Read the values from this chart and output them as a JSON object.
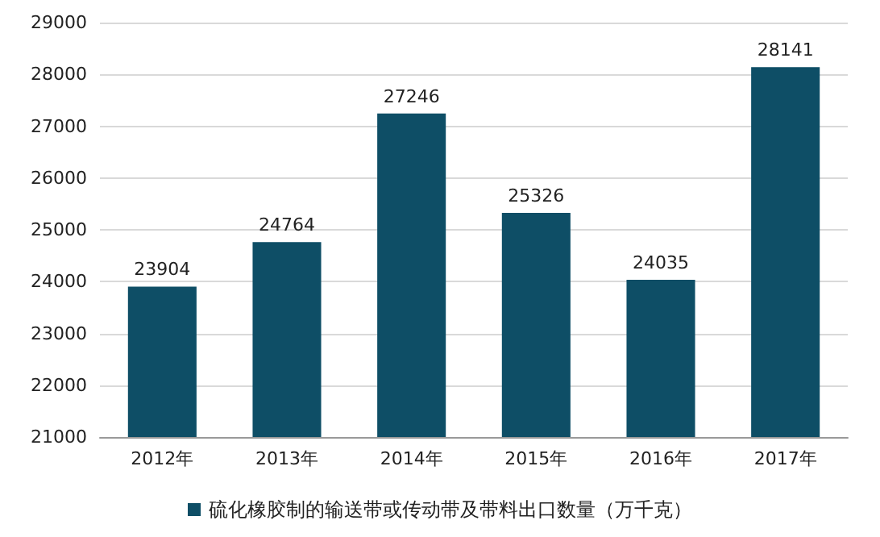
{
  "chart_data": {
    "type": "bar",
    "categories": [
      "2012年",
      "2013年",
      "2014年",
      "2015年",
      "2016年",
      "2017年"
    ],
    "series": [
      {
        "name": "硫化橡胶制的输送带或传动带及带料出口数量（万千克）",
        "color": "#0e4e66",
        "values": [
          23904,
          24764,
          27246,
          25326,
          24035,
          28141
        ]
      }
    ],
    "ylim": [
      21000,
      29000
    ],
    "yticks": [
      21000,
      22000,
      23000,
      24000,
      25000,
      26000,
      27000,
      28000,
      29000
    ],
    "grid": "y",
    "legend": "bottom",
    "data_labels": true
  }
}
